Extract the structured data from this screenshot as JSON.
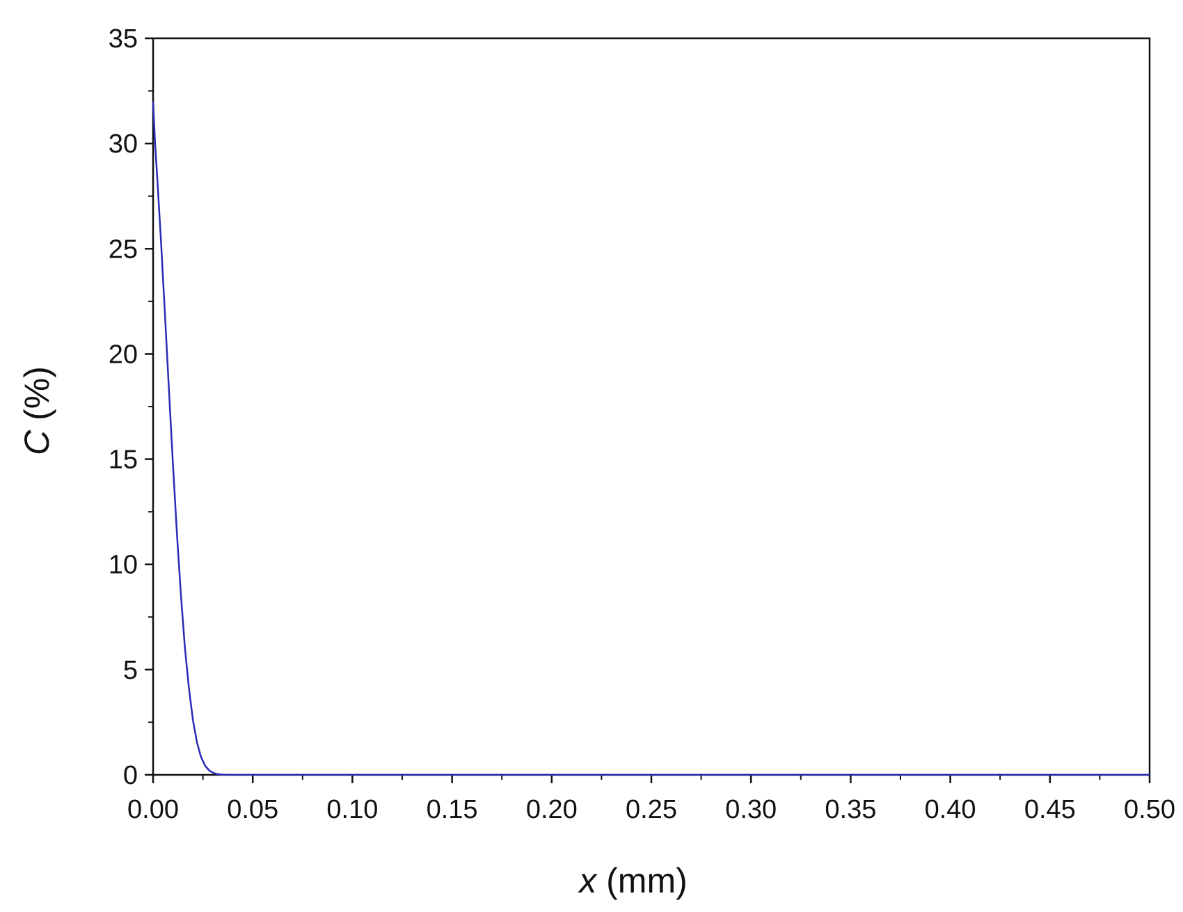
{
  "chart_data": {
    "type": "line",
    "xlabel": {
      "var": "x",
      "unit": " (mm)"
    },
    "ylabel": {
      "var": "C",
      "unit": " (%)"
    },
    "xlim": [
      0,
      0.5
    ],
    "ylim": [
      0,
      35
    ],
    "x_ticks": [
      "0.00",
      "0.05",
      "0.10",
      "0.15",
      "0.20",
      "0.25",
      "0.30",
      "0.35",
      "0.40",
      "0.45",
      "0.50"
    ],
    "y_ticks": [
      "0",
      "5",
      "10",
      "15",
      "20",
      "25",
      "30",
      "35"
    ],
    "grid": false,
    "legend": "none",
    "series": [
      {
        "color": "#2a2ab8",
        "x": [
          0.0,
          0.001,
          0.002,
          0.004,
          0.006,
          0.008,
          0.01,
          0.012,
          0.014,
          0.016,
          0.018,
          0.02,
          0.022,
          0.024,
          0.026,
          0.028,
          0.03,
          0.032,
          0.034,
          0.036,
          0.04,
          0.05,
          0.1,
          0.2,
          0.3,
          0.4,
          0.5
        ],
        "y": [
          32.0,
          30.0,
          28.5,
          25.3,
          21.8,
          18.2,
          14.7,
          11.4,
          8.5,
          6.0,
          4.1,
          2.6,
          1.55,
          0.86,
          0.45,
          0.22,
          0.1,
          0.04,
          0.015,
          0.005,
          0.0,
          0.0,
          0.0,
          0.0,
          0.0,
          0.0,
          0.0
        ]
      }
    ]
  }
}
